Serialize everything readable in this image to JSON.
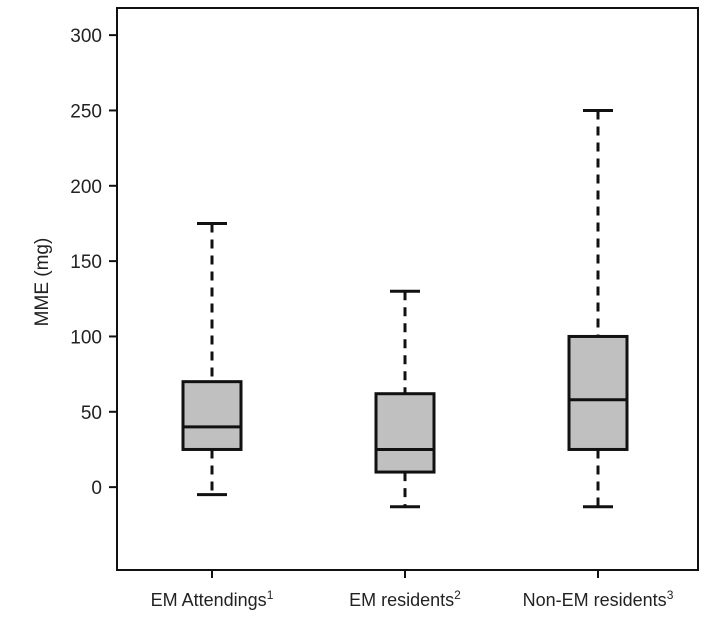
{
  "chart_data": {
    "type": "box",
    "title": "",
    "xlabel": "",
    "ylabel": "MME (mg)",
    "ylim": [
      -55,
      318
    ],
    "yticks": [
      0,
      50,
      100,
      150,
      200,
      250,
      300
    ],
    "grid": false,
    "categories": [
      "EM Attendings",
      "EM residents",
      "Non-EM residents"
    ],
    "category_superscripts": [
      "1",
      "2",
      "3"
    ],
    "boxes": [
      {
        "whisker_low": -5,
        "q1": 25,
        "median": 40,
        "q3": 70,
        "whisker_high": 175
      },
      {
        "whisker_low": -13,
        "q1": 10,
        "median": 25,
        "q3": 62,
        "whisker_high": 130
      },
      {
        "whisker_low": -13,
        "q1": 25,
        "median": 58,
        "q3": 100,
        "whisker_high": 250
      }
    ],
    "box_fill": "#c0c0c0",
    "line_color": "#111111"
  }
}
